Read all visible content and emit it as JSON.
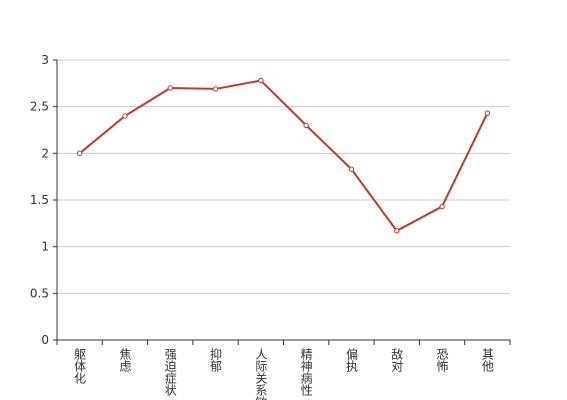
{
  "chart_data": {
    "type": "line",
    "categories": [
      "躯体化",
      "焦虑",
      "强迫症状",
      "抑郁",
      "人际关系敏感",
      "精神病性",
      "偏执",
      "敌对",
      "恐怖",
      "其他"
    ],
    "values": [
      2.0,
      2.4,
      2.7,
      2.69,
      2.78,
      2.3,
      1.83,
      1.17,
      1.43,
      2.43
    ],
    "color": "#c0392f",
    "ylim": [
      0,
      3
    ],
    "yticks": [
      0,
      0.5,
      1,
      1.5,
      2,
      2.5,
      3
    ],
    "grid": true
  }
}
